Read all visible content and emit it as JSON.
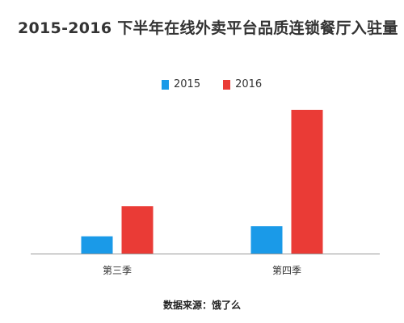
{
  "chart_data": {
    "type": "bar",
    "title": "2015-2016 下半年在线外卖平台品质连锁餐厅入驻量",
    "categories": [
      "第三季",
      "第四季"
    ],
    "series": [
      {
        "name": "2015",
        "color": "#1a9ae8",
        "values": [
          12,
          19
        ]
      },
      {
        "name": "2016",
        "color": "#ea3b36",
        "values": [
          33,
          100
        ]
      }
    ],
    "ylim": [
      0,
      100
    ],
    "xlabel": "",
    "ylabel": "",
    "grid": false,
    "legend_position": "top-center"
  },
  "footer": {
    "source": "数据来源：饿了么"
  }
}
